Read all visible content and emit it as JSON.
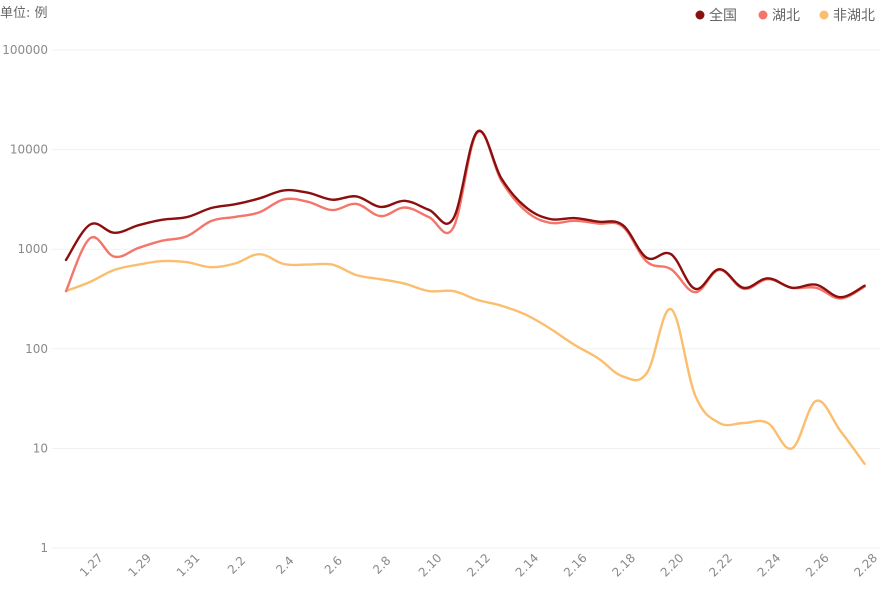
{
  "chart_data": {
    "type": "line",
    "unit_label": "单位: 例",
    "yscale": "log",
    "ylim": [
      1,
      100000
    ],
    "y_ticks": [
      {
        "value": 100000,
        "label": "100000"
      },
      {
        "value": 10000,
        "label": "10000"
      },
      {
        "value": 1000,
        "label": "1000"
      },
      {
        "value": 100,
        "label": "100"
      },
      {
        "value": 10,
        "label": "10"
      },
      {
        "value": 1,
        "label": "1"
      }
    ],
    "x": [
      "1.26",
      "1.27",
      "1.28",
      "1.29",
      "1.30",
      "1.31",
      "2.1",
      "2.2",
      "2.3",
      "2.4",
      "2.5",
      "2.6",
      "2.7",
      "2.8",
      "2.9",
      "2.10",
      "2.11",
      "2.12",
      "2.13",
      "2.14",
      "2.15",
      "2.16",
      "2.17",
      "2.18",
      "2.19",
      "2.20",
      "2.21",
      "2.22",
      "2.23",
      "2.24",
      "2.25",
      "2.26",
      "2.27",
      "2.28",
      "2.29"
    ],
    "x_tick_labels": [
      "1.27",
      "1.29",
      "1.31",
      "2.2",
      "2.4",
      "2.6",
      "2.8",
      "2.10",
      "2.12",
      "2.14",
      "2.16",
      "2.18",
      "2.20",
      "2.22",
      "2.24",
      "2.26",
      "2.28"
    ],
    "series": [
      {
        "name": "全国",
        "color": "#8b0f0f",
        "values": [
          780,
          1770,
          1460,
          1740,
          1980,
          2100,
          2590,
          2830,
          3240,
          3890,
          3690,
          3140,
          3390,
          2660,
          3060,
          2480,
          2020,
          15150,
          5090,
          2640,
          2010,
          2050,
          1890,
          1750,
          820,
          890,
          400,
          630,
          410,
          510,
          410,
          440,
          330,
          430,
          null
        ]
      },
      {
        "name": "湖北",
        "color": "#f4756a",
        "values": [
          380,
          1290,
          840,
          1030,
          1220,
          1350,
          1920,
          2110,
          2350,
          3160,
          2990,
          2470,
          2850,
          2150,
          2620,
          2100,
          1640,
          14840,
          4820,
          2420,
          1840,
          1930,
          1810,
          1690,
          750,
          630,
          370,
          620,
          400,
          500,
          410,
          410,
          320,
          420,
          null
        ]
      },
      {
        "name": "非湖北",
        "color": "#fbbe6e",
        "values": [
          380,
          470,
          620,
          700,
          760,
          740,
          660,
          720,
          890,
          710,
          700,
          700,
          550,
          500,
          450,
          380,
          380,
          310,
          270,
          220,
          160,
          110,
          80,
          53,
          57,
          250,
          34,
          18,
          18,
          18,
          10,
          30,
          15,
          7,
          null
        ]
      }
    ]
  }
}
